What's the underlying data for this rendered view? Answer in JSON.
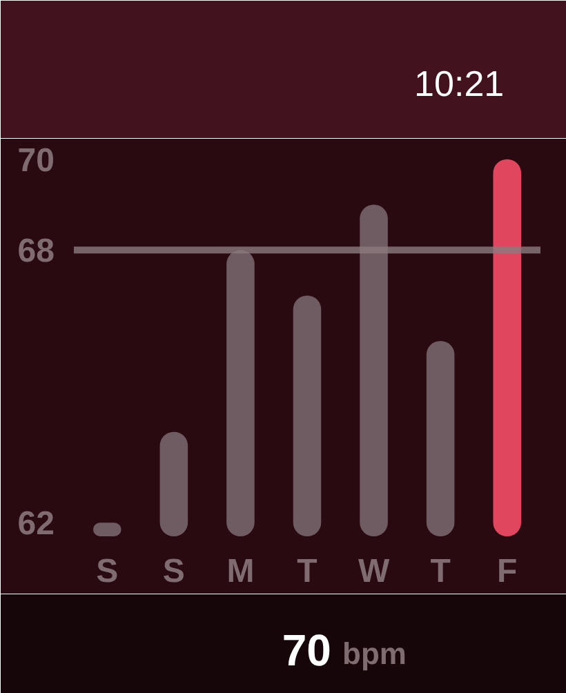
{
  "chart_data": {
    "type": "bar",
    "categories": [
      "S",
      "S",
      "M",
      "T",
      "W",
      "T",
      "F"
    ],
    "values": [
      62,
      64,
      68,
      67,
      69,
      66,
      70
    ],
    "colors": [
      "#6e5c62",
      "#6e5c62",
      "#6e5c62",
      "#6e5c62",
      "#6e5c62",
      "#6e5c62",
      "#e0465e"
    ],
    "ylim": [
      61.7,
      70.3
    ],
    "yticks": [
      62,
      68,
      70
    ],
    "ref_lines": [
      {
        "axis": "y",
        "value": 68,
        "color": "#8a7a7e"
      }
    ],
    "annotations": [
      "10:21",
      "70 bpm"
    ]
  }
}
